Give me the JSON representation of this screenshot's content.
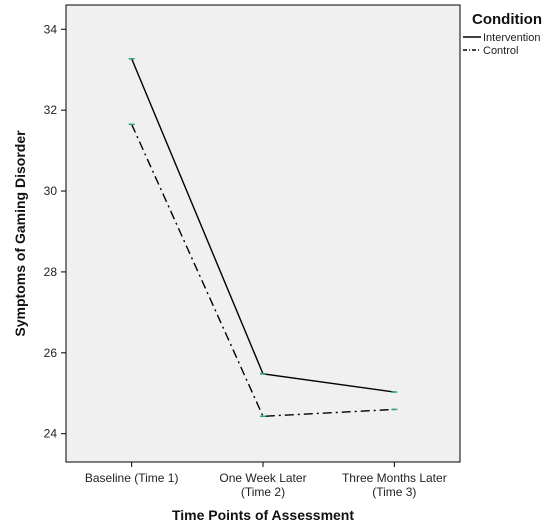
{
  "chart_data": {
    "type": "line",
    "title": "",
    "xlabel": "Time Points of Assessment",
    "ylabel": "Symptoms of Gaming Disorder",
    "categories": [
      [
        "Baseline (Time 1)"
      ],
      [
        "One Week Later",
        "(Time 2)"
      ],
      [
        "Three Months Later",
        "(Time 3)"
      ]
    ],
    "ylim": [
      23.3,
      34.6
    ],
    "yticks": [
      24,
      26,
      28,
      30,
      32,
      34
    ],
    "grid": false,
    "legend": {
      "title": "Condition",
      "position": "top-right"
    },
    "series": [
      {
        "name": "Intervention",
        "values": [
          33.27,
          25.48,
          25.03
        ],
        "line_style": "solid",
        "color": "#000000",
        "marker_color": "#2aa58a"
      },
      {
        "name": "Control",
        "values": [
          31.65,
          24.43,
          24.6
        ],
        "line_style": "dash-dot",
        "color": "#000000",
        "marker_color": "#2aa58a"
      }
    ],
    "colors": {
      "plot_background": "#f0f0f0",
      "frame": "#000000"
    }
  }
}
